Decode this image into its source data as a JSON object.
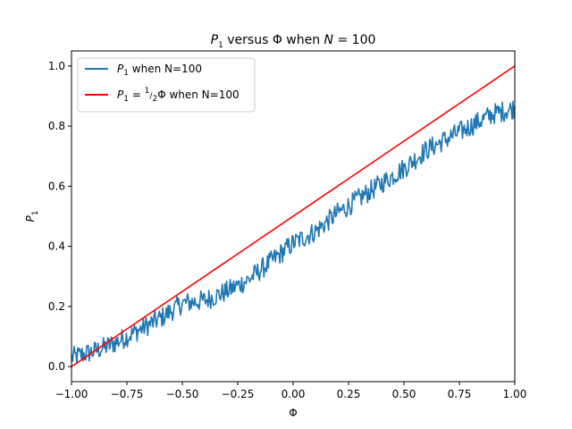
{
  "chart_data": {
    "type": "line",
    "title": {
      "prefix": "P",
      "sub": "1",
      "rest": " versus Φ when ",
      "var": "N",
      "eq": " = 100"
    },
    "xlabel": "Φ",
    "ylabel": {
      "main": "P",
      "sub": "1"
    },
    "xlim": [
      -1.0,
      1.0
    ],
    "ylim": [
      -0.05,
      1.05
    ],
    "xticks": [
      -1.0,
      -0.75,
      -0.5,
      -0.25,
      0.0,
      0.25,
      0.5,
      0.75,
      1.0
    ],
    "xtick_labels": [
      "−1.00",
      "−0.75",
      "−0.50",
      "−0.25",
      "0.00",
      "0.25",
      "0.50",
      "0.75",
      "1.00"
    ],
    "yticks": [
      0.0,
      0.2,
      0.4,
      0.6,
      0.8,
      1.0
    ],
    "ytick_labels": [
      "0.0",
      "0.2",
      "0.4",
      "0.6",
      "0.8",
      "1.0"
    ],
    "grid": false,
    "legend_position": "upper-left",
    "series": [
      {
        "name": "P1 when N=100",
        "legend": {
          "main": "P",
          "sub": "1",
          "rest": " when N=100"
        },
        "color": "#1f77b4",
        "noisy": true,
        "x": [
          -1.0,
          -0.9,
          -0.8,
          -0.7,
          -0.6,
          -0.5,
          -0.4,
          -0.3,
          -0.2,
          -0.1,
          0.0,
          0.1,
          0.2,
          0.3,
          0.4,
          0.5,
          0.6,
          0.7,
          0.8,
          0.9,
          1.0
        ],
        "y": [
          0.03,
          0.05,
          0.08,
          0.12,
          0.16,
          0.21,
          0.22,
          0.25,
          0.29,
          0.35,
          0.41,
          0.45,
          0.51,
          0.56,
          0.61,
          0.66,
          0.72,
          0.76,
          0.8,
          0.84,
          0.86
        ]
      },
      {
        "name": "P1 = ½Φ when N=100",
        "legend": {
          "main": "P",
          "sub": "1",
          "eq": " = ",
          "frac_num": "1",
          "frac_den": "2",
          "rest": "Φ when N=100"
        },
        "color": "#ff0000",
        "noisy": false,
        "x": [
          -1.0,
          1.0
        ],
        "y": [
          0.0,
          1.0
        ]
      }
    ]
  }
}
